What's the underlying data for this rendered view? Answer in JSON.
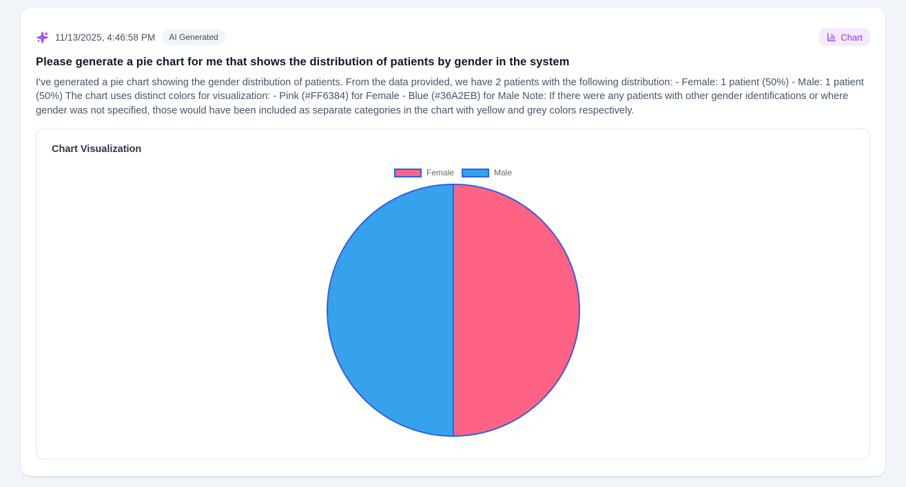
{
  "header": {
    "timestamp": "11/13/2025, 4:46:58 PM",
    "ai_badge_label": "AI Generated",
    "chart_badge_label": "Chart"
  },
  "message": {
    "question": "Please generate a pie chart for me that shows the distribution of patients by gender in the system",
    "answer": "I've generated a pie chart showing the gender distribution of patients. From the data provided, we have 2 patients with the following distribution: - Female: 1 patient (50%) - Male: 1 patient (50%) The chart uses distinct colors for visualization: - Pink (#FF6384) for Female - Blue (#36A2EB) for Male Note: If there were any patients with other gender identifications or where gender was not specified, those would have been included as separate categories in the chart with yellow and grey colors respectively."
  },
  "chart_card": {
    "title": "Chart Visualization"
  },
  "chart_data": {
    "type": "pie",
    "title": "Chart Visualization",
    "labels": [
      "Female",
      "Male"
    ],
    "values": [
      1,
      1
    ],
    "percentages": [
      50,
      50
    ],
    "colors": [
      "#FF6384",
      "#36A2EB"
    ],
    "slice_border_color": "#2563eb",
    "slice_border_width": 2,
    "legend_position": "top",
    "start_angle_deg": 0,
    "direction": "clockwise"
  },
  "colors": {
    "page_background": "#f1f5f9",
    "accent_purple": "#9333ea",
    "chart_badge_background": "#f5eafe",
    "female_pink": "#FF6384",
    "male_blue": "#36A2EB",
    "pie_border_blue": "#2563eb"
  }
}
